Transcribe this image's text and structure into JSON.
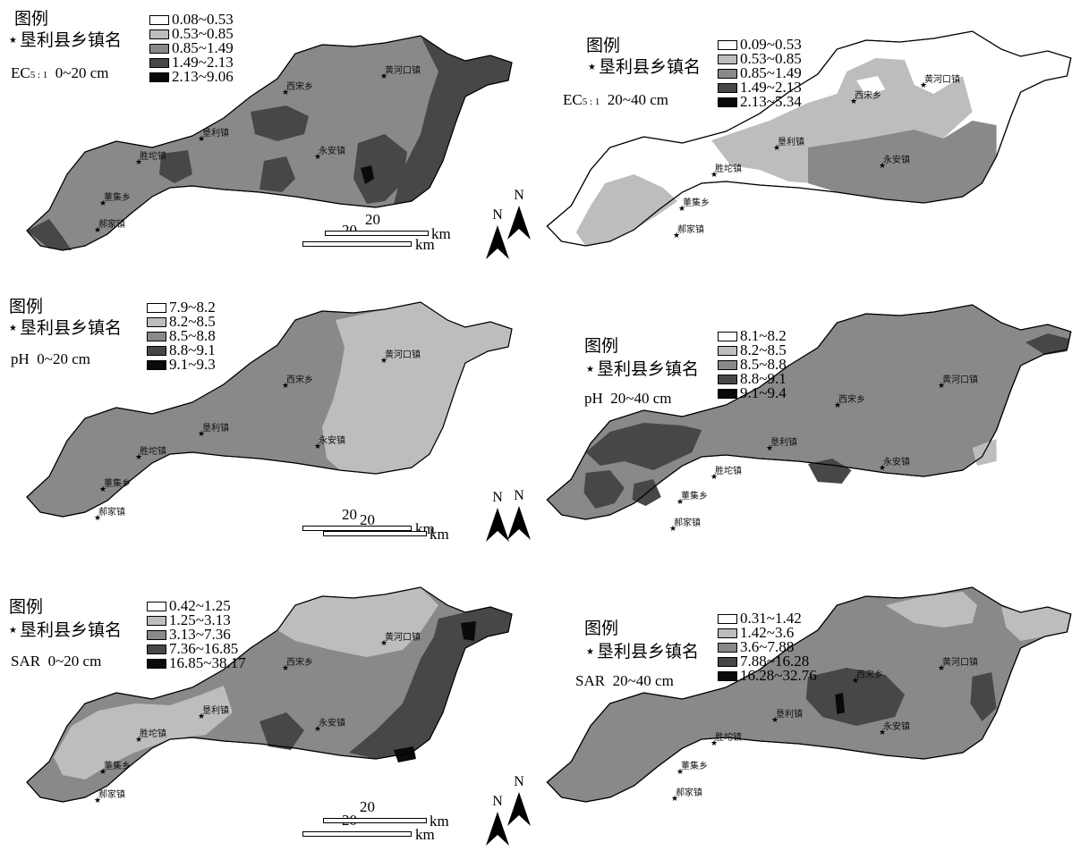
{
  "legend": {
    "title": "图例",
    "town_label": "垦利县乡镇名"
  },
  "towns": [
    "黄河口镇",
    "西宋乡",
    "垦利镇",
    "永安镇",
    "胜坨镇",
    "董集乡",
    "郝家镇"
  ],
  "scale": {
    "value": "20",
    "unit": "km"
  },
  "north": "N",
  "colors": {
    "c1": "#ffffff",
    "c2": "#bdbdbd",
    "c3": "#898989",
    "c4": "#474747",
    "c5": "#0a0a0a"
  },
  "panels": [
    {
      "var_main": "EC",
      "var_sub": "5 : 1",
      "depth": "0~20 cm",
      "classes": [
        "0.08~0.53",
        "0.53~0.85",
        "0.85~1.49",
        "1.49~2.13",
        "2.13~9.06"
      ]
    },
    {
      "var_main": "EC",
      "var_sub": "5 : 1",
      "depth": "20~40 cm",
      "classes": [
        "0.09~0.53",
        "0.53~0.85",
        "0.85~1.49",
        "1.49~2.13",
        "2.13~5.34"
      ]
    },
    {
      "var_main": "pH",
      "var_sub": "",
      "depth": "0~20 cm",
      "classes": [
        "7.9~8.2",
        "8.2~8.5",
        "8.5~8.8",
        "8.8~9.1",
        "9.1~9.3"
      ]
    },
    {
      "var_main": "pH",
      "var_sub": "",
      "depth": "20~40 cm",
      "classes": [
        "8.1~8.2",
        "8.2~8.5",
        "8.5~8.8",
        "8.8~9.1",
        "9.1~9.4"
      ]
    },
    {
      "var_main": "SAR",
      "var_sub": "",
      "depth": "0~20 cm",
      "classes": [
        "0.42~1.25",
        "1.25~3.13",
        "3.13~7.36",
        "7.36~16.85",
        "16.85~38.17"
      ]
    },
    {
      "var_main": "SAR",
      "var_sub": "",
      "depth": "20~40 cm",
      "classes": [
        "0.31~1.42",
        "1.42~3.6",
        "3.6~7.88",
        "7.88~16.28",
        "16.28~32.76"
      ]
    }
  ]
}
